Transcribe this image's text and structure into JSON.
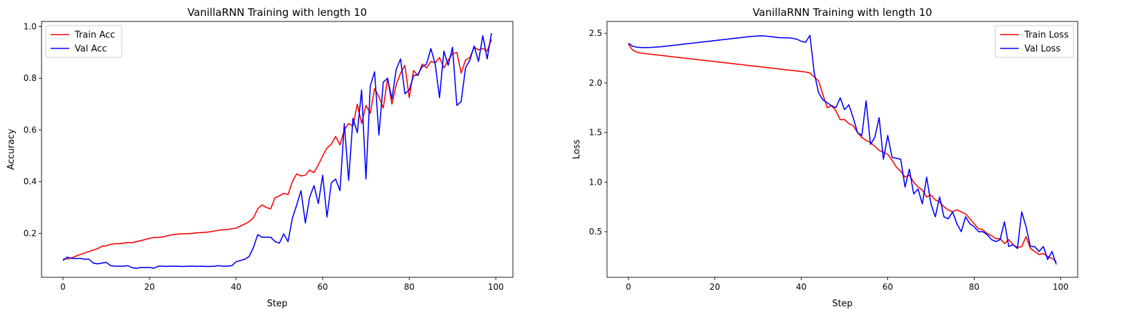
{
  "chart_data": [
    {
      "type": "line",
      "title": "VanillaRNN Training with length 10",
      "xlabel": "Step",
      "ylabel": "Accuracy",
      "xlim": [
        -4.95,
        103.95
      ],
      "ylim": [
        0.03,
        1.02
      ],
      "xticks": [
        0,
        20,
        40,
        60,
        80,
        100
      ],
      "yticks": [
        0.2,
        0.4,
        0.6,
        0.8,
        1.0
      ],
      "xtick_labels": [
        "0",
        "20",
        "40",
        "60",
        "80",
        "100"
      ],
      "ytick_labels": [
        "0.2",
        "0.4",
        "0.6",
        "0.8",
        "1.0"
      ],
      "legend_position": "upper-left",
      "grid": false,
      "series": [
        {
          "name": "Train Acc",
          "color": "#ff0000",
          "values": [
            0.1,
            0.101,
            0.105,
            0.112,
            0.118,
            0.124,
            0.13,
            0.135,
            0.141,
            0.15,
            0.152,
            0.157,
            0.16,
            0.16,
            0.162,
            0.165,
            0.164,
            0.168,
            0.172,
            0.176,
            0.181,
            0.184,
            0.184,
            0.186,
            0.19,
            0.194,
            0.196,
            0.198,
            0.198,
            0.199,
            0.2,
            0.202,
            0.203,
            0.204,
            0.206,
            0.209,
            0.212,
            0.214,
            0.215,
            0.218,
            0.22,
            0.228,
            0.236,
            0.245,
            0.26,
            0.295,
            0.31,
            0.3,
            0.295,
            0.338,
            0.345,
            0.355,
            0.35,
            0.4,
            0.43,
            0.422,
            0.425,
            0.445,
            0.435,
            0.465,
            0.5,
            0.53,
            0.545,
            0.575,
            0.542,
            0.6,
            0.625,
            0.615,
            0.7,
            0.625,
            0.695,
            0.665,
            0.76,
            0.728,
            0.685,
            0.8,
            0.7,
            0.775,
            0.82,
            0.85,
            0.725,
            0.83,
            0.81,
            0.855,
            0.84,
            0.865,
            0.86,
            0.88,
            0.84,
            0.87,
            0.895,
            0.9,
            0.82,
            0.87,
            0.88,
            0.92,
            0.91,
            0.915,
            0.905,
            0.95
          ]
        },
        {
          "name": "Val Acc",
          "color": "#0000ff",
          "values": [
            0.095,
            0.108,
            0.103,
            0.103,
            0.103,
            0.1,
            0.1,
            0.085,
            0.082,
            0.085,
            0.088,
            0.075,
            0.073,
            0.073,
            0.073,
            0.075,
            0.067,
            0.065,
            0.068,
            0.068,
            0.068,
            0.065,
            0.073,
            0.073,
            0.072,
            0.073,
            0.073,
            0.072,
            0.072,
            0.073,
            0.073,
            0.072,
            0.073,
            0.072,
            0.072,
            0.073,
            0.075,
            0.073,
            0.073,
            0.075,
            0.09,
            0.095,
            0.1,
            0.11,
            0.145,
            0.195,
            0.185,
            0.185,
            0.185,
            0.168,
            0.162,
            0.198,
            0.168,
            0.258,
            0.31,
            0.365,
            0.24,
            0.34,
            0.385,
            0.315,
            0.425,
            0.263,
            0.395,
            0.41,
            0.365,
            0.625,
            0.405,
            0.645,
            0.59,
            0.755,
            0.41,
            0.77,
            0.825,
            0.58,
            0.785,
            0.8,
            0.72,
            0.835,
            0.875,
            0.74,
            0.755,
            0.81,
            0.815,
            0.845,
            0.855,
            0.915,
            0.855,
            0.725,
            0.905,
            0.85,
            0.92,
            0.695,
            0.71,
            0.84,
            0.87,
            0.925,
            0.865,
            0.965,
            0.875,
            0.975
          ]
        }
      ]
    },
    {
      "type": "line",
      "title": "VanillaRNN Training with length 10",
      "xlabel": "Step",
      "ylabel": "Loss",
      "xlim": [
        -4.95,
        103.95
      ],
      "ylim": [
        0.04,
        2.62
      ],
      "xticks": [
        0,
        20,
        40,
        60,
        80,
        100
      ],
      "yticks": [
        0.5,
        1.0,
        1.5,
        2.0,
        2.5
      ],
      "xtick_labels": [
        "0",
        "20",
        "40",
        "60",
        "80",
        "100"
      ],
      "ytick_labels": [
        "0.5",
        "1.0",
        "1.5",
        "2.0",
        "2.5"
      ],
      "legend_position": "upper-right",
      "grid": false,
      "series": [
        {
          "name": "Train Loss",
          "color": "#ff0000",
          "values": [
            2.39,
            2.33,
            2.31,
            2.3,
            2.295,
            2.29,
            2.285,
            2.28,
            2.275,
            2.27,
            2.265,
            2.26,
            2.255,
            2.25,
            2.245,
            2.24,
            2.235,
            2.23,
            2.225,
            2.22,
            2.215,
            2.21,
            2.205,
            2.2,
            2.195,
            2.19,
            2.185,
            2.18,
            2.175,
            2.17,
            2.165,
            2.16,
            2.155,
            2.15,
            2.145,
            2.14,
            2.135,
            2.13,
            2.125,
            2.12,
            2.115,
            2.11,
            2.1,
            2.06,
            2.02,
            1.88,
            1.75,
            1.77,
            1.72,
            1.63,
            1.63,
            1.59,
            1.57,
            1.5,
            1.45,
            1.42,
            1.4,
            1.36,
            1.32,
            1.3,
            1.28,
            1.22,
            1.15,
            1.11,
            1.05,
            1.07,
            1.0,
            0.95,
            0.92,
            0.85,
            0.87,
            0.82,
            0.8,
            0.75,
            0.72,
            0.7,
            0.72,
            0.7,
            0.68,
            0.63,
            0.58,
            0.53,
            0.52,
            0.48,
            0.46,
            0.43,
            0.43,
            0.38,
            0.42,
            0.37,
            0.34,
            0.35,
            0.45,
            0.33,
            0.3,
            0.27,
            0.28,
            0.25,
            0.23,
            0.2
          ]
        },
        {
          "name": "Val Loss",
          "color": "#0000ff",
          "values": [
            2.4,
            2.37,
            2.36,
            2.357,
            2.356,
            2.357,
            2.36,
            2.363,
            2.367,
            2.372,
            2.377,
            2.382,
            2.387,
            2.392,
            2.397,
            2.402,
            2.407,
            2.412,
            2.417,
            2.422,
            2.427,
            2.432,
            2.437,
            2.442,
            2.447,
            2.452,
            2.457,
            2.462,
            2.467,
            2.47,
            2.473,
            2.475,
            2.471,
            2.466,
            2.461,
            2.456,
            2.455,
            2.455,
            2.45,
            2.44,
            2.42,
            2.41,
            2.48,
            2.1,
            1.9,
            1.83,
            1.8,
            1.77,
            1.75,
            1.85,
            1.73,
            1.78,
            1.65,
            1.5,
            1.47,
            1.82,
            1.38,
            1.45,
            1.65,
            1.23,
            1.47,
            1.25,
            1.24,
            1.23,
            0.95,
            1.13,
            0.88,
            0.93,
            0.78,
            1.05,
            0.78,
            0.65,
            0.85,
            0.65,
            0.63,
            0.7,
            0.58,
            0.5,
            0.65,
            0.58,
            0.55,
            0.5,
            0.5,
            0.47,
            0.42,
            0.4,
            0.42,
            0.6,
            0.35,
            0.37,
            0.33,
            0.7,
            0.55,
            0.35,
            0.35,
            0.3,
            0.35,
            0.22,
            0.3,
            0.17
          ]
        }
      ]
    }
  ]
}
